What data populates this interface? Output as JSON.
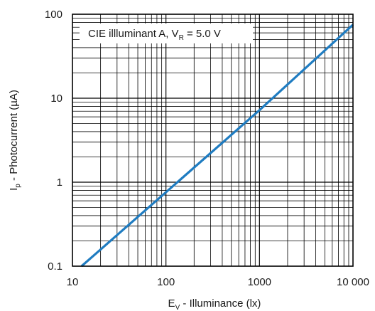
{
  "chart_data": {
    "type": "line",
    "x_scale": "log",
    "y_scale": "log",
    "xlim": [
      10,
      10000
    ],
    "ylim": [
      0.1,
      100
    ],
    "grid": true,
    "annotation": {
      "main": "CIE illluminant A, V",
      "sub": "R",
      "tail": " = 5.0 V"
    },
    "xlabel": {
      "main": "E",
      "sub": "V",
      "tail": " - Illuminance (lx)"
    },
    "ylabel": {
      "main": "I",
      "sub": "p",
      "tail": " - Photocurrent (µA)"
    },
    "x_ticks": [
      {
        "value": 10,
        "label": "10"
      },
      {
        "value": 100,
        "label": "100"
      },
      {
        "value": 1000,
        "label": "1000"
      },
      {
        "value": 10000,
        "label": "10 000"
      }
    ],
    "y_ticks": [
      {
        "value": 0.1,
        "label": "0.1"
      },
      {
        "value": 1,
        "label": "1"
      },
      {
        "value": 10,
        "label": "10"
      },
      {
        "value": 100,
        "label": "100"
      }
    ],
    "series": [
      {
        "color": "#1f7cc1",
        "x": [
          12.5,
          100,
          1000,
          10000
        ],
        "y": [
          0.1,
          0.76,
          7.2,
          75
        ]
      }
    ]
  }
}
